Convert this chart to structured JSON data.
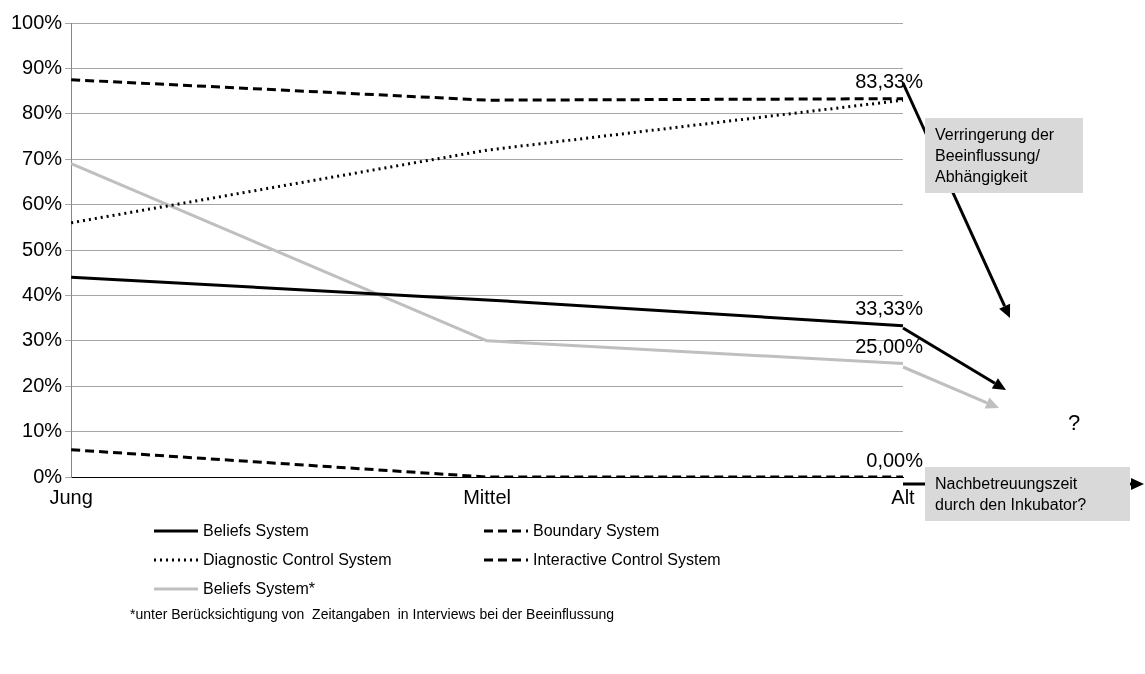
{
  "chart_data": {
    "type": "line",
    "categories": [
      "Jung",
      "Mittel",
      "Alt"
    ],
    "ylim": [
      0,
      100
    ],
    "yticks": [
      {
        "value": 0,
        "label": "0%"
      },
      {
        "value": 10,
        "label": "10%"
      },
      {
        "value": 20,
        "label": "20%"
      },
      {
        "value": 30,
        "label": "30%"
      },
      {
        "value": 40,
        "label": "40%"
      },
      {
        "value": 50,
        "label": "50%"
      },
      {
        "value": 60,
        "label": "60%"
      },
      {
        "value": 70,
        "label": "70%"
      },
      {
        "value": 80,
        "label": "80%"
      },
      {
        "value": 90,
        "label": "90%"
      },
      {
        "value": 100,
        "label": "100%"
      }
    ],
    "grid": "y",
    "legend": "bottom",
    "marker": "none",
    "series": [
      {
        "name": "Beliefs System",
        "color": "#000000",
        "values": [
          44,
          39,
          33.33
        ],
        "line_style": "solid",
        "value_labels": [
          null,
          null,
          "33,33%"
        ]
      },
      {
        "name": "Boundary System",
        "color": "#000000",
        "values": [
          6,
          0,
          0
        ],
        "line_style": "dashed",
        "value_labels": [
          null,
          null,
          "0,00%"
        ]
      },
      {
        "name": "Diagnostic Control System",
        "color": "#000000",
        "values": [
          56,
          72,
          83
        ],
        "line_style": "dotted"
      },
      {
        "name": "Interactive Control System",
        "color": "#000000",
        "values": [
          87.5,
          83,
          83.33
        ],
        "line_style": "dashed",
        "value_labels": [
          null,
          null,
          "83,33%"
        ]
      },
      {
        "name": "Beliefs System*",
        "color": "#bfbfbf",
        "values": [
          69,
          30,
          25
        ],
        "line_style": "solid",
        "value_labels": [
          null,
          null,
          "25,00%"
        ]
      }
    ],
    "annotations": [
      "Verringerung der Beeinflussung/ Abhängigkeit",
      "?",
      "Nachbetreuungszeit durch den Inkubator?",
      "*unter Berücksichtigung von  Zeitangaben  in Interviews bei der Beeinflussung"
    ]
  }
}
